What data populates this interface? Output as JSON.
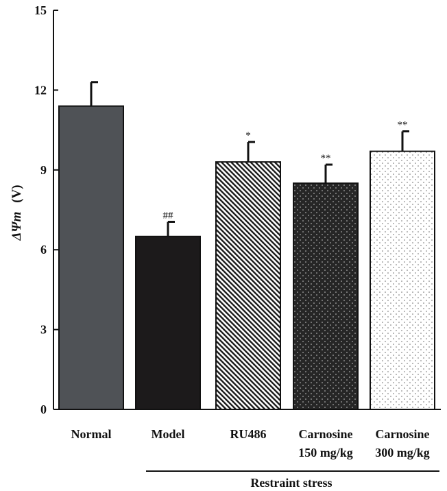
{
  "chart_data": {
    "type": "bar",
    "title": "",
    "ylabel": "ΔΨm (V)",
    "ylabel_symbol": "ΔΨm",
    "ylabel_unit": "(V)",
    "ylim": [
      0,
      15
    ],
    "yticks": [
      0,
      3,
      6,
      9,
      12,
      15
    ],
    "grid": false,
    "categories": [
      {
        "line1": "Normal",
        "line2": ""
      },
      {
        "line1": "Model",
        "line2": ""
      },
      {
        "line1": "RU486",
        "line2": ""
      },
      {
        "line1": "Carnosine",
        "line2": "150 mg/kg"
      },
      {
        "line1": "Carnosine",
        "line2": "300 mg/kg"
      }
    ],
    "values": [
      11.4,
      6.5,
      9.3,
      8.5,
      9.7
    ],
    "errors": [
      0.9,
      0.55,
      0.75,
      0.7,
      0.75
    ],
    "significance": [
      "",
      "##",
      "*",
      "**",
      "**"
    ],
    "bar_fills": [
      "solid-gray",
      "solid-black",
      "diagonal-hatch",
      "dark-dots",
      "light-dots"
    ],
    "group_label": "Restraint stress",
    "group_members": [
      "Model",
      "RU486",
      "Carnosine 150 mg/kg",
      "Carnosine 300 mg/kg"
    ],
    "colors": {
      "normal": "#4f5256",
      "model": "#1c1a1b",
      "hatch": "#1a1a1a",
      "dark_dots": "#262626",
      "light_dots_bg": "#ffffff",
      "axis": "#111111"
    }
  }
}
